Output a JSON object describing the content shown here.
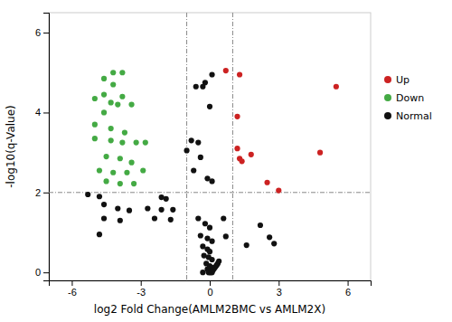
{
  "chart_data": {
    "type": "scatter",
    "xlabel": "log2 Fold Change(AMLM2BMC vs AMLM2X)",
    "ylabel": "-log10(q-Value)",
    "xlim": [
      -7,
      7
    ],
    "ylim": [
      -0.2,
      6.5
    ],
    "xticks": [
      -6,
      -3,
      0,
      3,
      6
    ],
    "yticks": [
      0,
      2,
      4,
      6
    ],
    "grid": false,
    "legend": "right",
    "marker": "circle",
    "hline": 2.0,
    "vlines": [
      -1,
      1
    ],
    "series": [
      {
        "name": "Up",
        "color": "#cc2222",
        "x": [
          0.7,
          1.3,
          1.2,
          1.2,
          1.3,
          1.4,
          1.8,
          2.5,
          3.0,
          5.5,
          4.8
        ],
        "values": [
          5.05,
          4.95,
          3.9,
          3.1,
          2.85,
          2.78,
          2.95,
          2.25,
          2.05,
          4.65,
          3.0
        ]
      },
      {
        "name": "Down",
        "color": "#44aa44",
        "x": [
          -4.2,
          -3.8,
          -4.6,
          -4.2,
          -4.6,
          -3.8,
          -5.0,
          -4.3,
          -4.6,
          -4.0,
          -3.4,
          -5.0,
          -4.3,
          -3.7,
          -5.0,
          -4.3,
          -3.8,
          -3.2,
          -4.5,
          -3.9,
          -3.4,
          -4.8,
          -4.2,
          -3.6,
          -4.5,
          -3.9,
          -3.3,
          -2.9,
          -2.8
        ],
        "values": [
          5.0,
          5.0,
          4.85,
          4.7,
          4.45,
          4.4,
          4.35,
          4.25,
          4.0,
          4.2,
          4.2,
          3.7,
          3.6,
          3.5,
          3.35,
          3.3,
          3.25,
          3.25,
          2.9,
          2.85,
          2.75,
          2.55,
          2.5,
          2.5,
          2.28,
          2.22,
          2.22,
          2.55,
          3.25
        ]
      },
      {
        "name": "Normal",
        "color": "#111111",
        "x": [
          -5.3,
          -4.8,
          -4.6,
          -4.0,
          -3.5,
          -4.6,
          -3.9,
          -4.8,
          -2.1,
          -1.9,
          -2.7,
          -2.1,
          -1.6,
          -2.4,
          -1.7,
          -0.8,
          -0.5,
          -1.0,
          -0.4,
          0.0,
          -0.6,
          -0.3,
          0.1,
          -0.2,
          -0.7,
          -0.1,
          0.1,
          -0.5,
          -0.2,
          0.0,
          -0.4,
          -0.1,
          0.1,
          -0.3,
          -0.1,
          0.0,
          -0.25,
          -0.05,
          0.1,
          -0.15,
          0.0,
          0.1,
          -0.1,
          -0.05,
          0.05,
          0.15,
          0.2,
          0.25,
          0.3,
          0.35,
          0.4,
          -0.3,
          -0.05,
          0.0,
          0.05,
          0.1,
          0.6,
          0.7,
          2.2,
          2.6,
          2.8,
          1.6
        ],
        "values": [
          1.95,
          1.9,
          1.7,
          1.6,
          1.55,
          1.35,
          1.3,
          0.95,
          1.88,
          1.84,
          1.6,
          1.57,
          1.57,
          1.35,
          1.32,
          3.3,
          3.25,
          3.05,
          2.88,
          4.15,
          4.65,
          4.65,
          4.95,
          4.75,
          2.55,
          2.35,
          2.28,
          1.35,
          1.22,
          1.12,
          0.92,
          0.85,
          0.78,
          0.65,
          0.58,
          0.52,
          0.42,
          0.38,
          0.32,
          0.22,
          0.16,
          0.12,
          0.08,
          0.04,
          0.02,
          0.06,
          0.1,
          0.14,
          0.18,
          0.22,
          0.28,
          0.0,
          0.0,
          0.0,
          0.0,
          0.0,
          1.35,
          0.9,
          1.18,
          0.88,
          0.72,
          0.68
        ]
      }
    ]
  }
}
